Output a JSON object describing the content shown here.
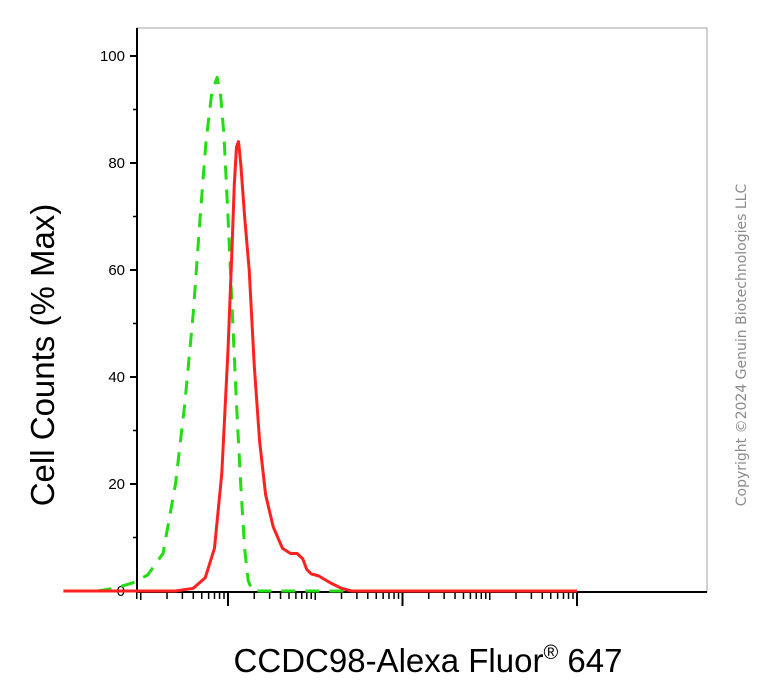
{
  "chart_data": {
    "type": "line",
    "title": "",
    "xlabel": "CCDC98-Alexa Fluor",
    "xlabel_superscript": "®",
    "xlabel_suffix": " 647",
    "ylabel": "Cell Counts (% Max)",
    "xscale": "log",
    "xlim": [
      1,
      1000000
    ],
    "ylim": [
      0,
      100
    ],
    "yticks": [
      "0",
      "20",
      "40",
      "60",
      "80",
      "100"
    ],
    "ytick_values": [
      0,
      20,
      40,
      60,
      80,
      100
    ],
    "x_major_ticks": [
      100,
      10000,
      1000000
    ],
    "grid": false,
    "series": [
      {
        "style": "dashed",
        "color": "#22dd11",
        "points": [
          [
            3.2,
            0
          ],
          [
            5,
            0.5
          ],
          [
            8,
            1.5
          ],
          [
            12,
            3
          ],
          [
            18,
            7
          ],
          [
            25,
            20
          ],
          [
            32,
            35
          ],
          [
            40,
            52
          ],
          [
            48,
            70
          ],
          [
            56,
            84
          ],
          [
            65,
            93
          ],
          [
            75,
            96
          ],
          [
            82,
            93
          ],
          [
            90,
            85
          ],
          [
            100,
            70
          ],
          [
            112,
            52
          ],
          [
            125,
            35
          ],
          [
            140,
            20
          ],
          [
            155,
            8
          ],
          [
            170,
            2
          ],
          [
            190,
            0
          ],
          [
            300,
            0
          ],
          [
            1000,
            0
          ],
          [
            10000,
            0
          ],
          [
            100000,
            0
          ],
          [
            1000000,
            0
          ]
        ]
      },
      {
        "style": "solid",
        "color": "#ff2020",
        "points": [
          [
            1.3,
            0
          ],
          [
            10,
            0
          ],
          [
            25,
            0
          ],
          [
            40,
            0.5
          ],
          [
            55,
            2.5
          ],
          [
            70,
            8
          ],
          [
            85,
            22
          ],
          [
            100,
            45
          ],
          [
            110,
            62
          ],
          [
            118,
            76
          ],
          [
            125,
            83
          ],
          [
            132,
            84
          ],
          [
            140,
            80
          ],
          [
            155,
            70
          ],
          [
            175,
            60
          ],
          [
            200,
            42
          ],
          [
            230,
            28
          ],
          [
            270,
            18
          ],
          [
            330,
            12
          ],
          [
            420,
            8
          ],
          [
            520,
            7
          ],
          [
            620,
            7
          ],
          [
            720,
            6
          ],
          [
            800,
            4
          ],
          [
            900,
            3.2
          ],
          [
            1100,
            2.8
          ],
          [
            1500,
            1.5
          ],
          [
            2000,
            0.5
          ],
          [
            2600,
            0
          ],
          [
            10000,
            0
          ],
          [
            100000,
            0
          ],
          [
            1000000,
            0
          ]
        ]
      }
    ]
  },
  "copyright": "Copyright ©2024 Genuin Biotechnologies LLC"
}
